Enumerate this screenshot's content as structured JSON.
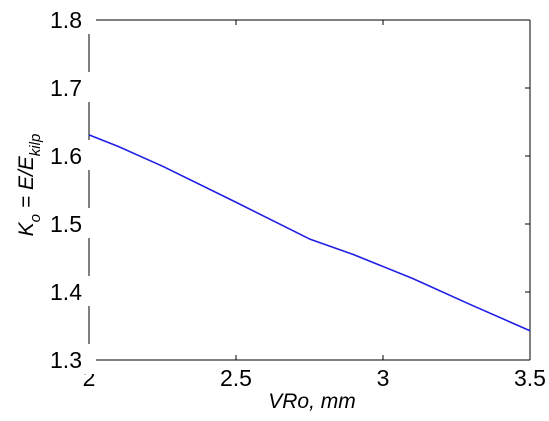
{
  "chart_data": {
    "type": "line",
    "title": "",
    "xlabel": "VRo, mm",
    "ylabel": {
      "base": "K",
      "sub1": "o",
      "middle": " = E/E",
      "sub2": "kilp"
    },
    "xlim": [
      2,
      3.5
    ],
    "ylim": [
      1.3,
      1.8
    ],
    "x_ticks": [
      2,
      2.5,
      3,
      3.5
    ],
    "x_tick_labels": [
      "2",
      "2.5",
      "3",
      "3.5"
    ],
    "y_ticks": [
      1.3,
      1.4,
      1.5,
      1.6,
      1.7,
      1.8
    ],
    "y_tick_labels": [
      "1.3",
      "1.4",
      "1.5",
      "1.6",
      "1.7",
      "1.8"
    ],
    "grid": false,
    "legend": "none",
    "series": [
      {
        "color": "#1f1fe6",
        "x": [
          2.0,
          2.1,
          2.25,
          2.5,
          2.75,
          2.9,
          3.1,
          3.3,
          3.5
        ],
        "y": [
          1.631,
          1.614,
          1.585,
          1.532,
          1.478,
          1.455,
          1.42,
          1.381,
          1.343
        ]
      }
    ]
  }
}
